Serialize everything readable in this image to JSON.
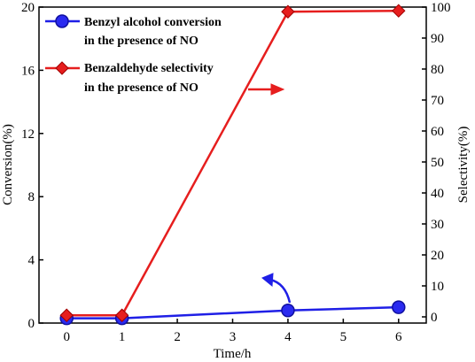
{
  "chart_data": {
    "type": "line",
    "x": [
      0,
      1,
      4,
      6
    ],
    "xlabel": "Time/h",
    "xlim": [
      -0.5,
      6.5
    ],
    "xticks": [
      "0",
      "1",
      "2",
      "3",
      "4",
      "5",
      "6"
    ],
    "left_axis": {
      "label": "Conversion(%)",
      "lim": [
        0,
        20
      ],
      "ticks": [
        "0",
        "4",
        "8",
        "12",
        "16",
        "20"
      ]
    },
    "right_axis": {
      "label": "Selectivity(%)",
      "lim": [
        -2,
        100
      ],
      "ticks": [
        "0",
        "10",
        "20",
        "30",
        "40",
        "50",
        "60",
        "70",
        "80",
        "90",
        "100"
      ]
    },
    "grid": false,
    "legend_position": "top-left",
    "series": [
      {
        "name": "Benzyl alcohol conversion in the presence of NO",
        "legend_lines": [
          "Benzyl alcohol conversion",
          "in the presence of NO"
        ],
        "axis": "left",
        "marker": "circle",
        "color": "#1f1fe6",
        "values": [
          0.3,
          0.3,
          0.8,
          1.0
        ]
      },
      {
        "name": "Benzaldehyde selectivity in the presence of NO",
        "legend_lines": [
          "Benzaldehyde selectivity",
          "in the presence of NO"
        ],
        "axis": "right",
        "marker": "diamond",
        "color": "#e61e1e",
        "values": [
          0.5,
          0.5,
          98.5,
          98.8
        ]
      }
    ],
    "annotations": [
      {
        "type": "arrow",
        "series": 0,
        "points_to": "left axis"
      },
      {
        "type": "arrow",
        "series": 1,
        "points_to": "right axis"
      }
    ]
  }
}
